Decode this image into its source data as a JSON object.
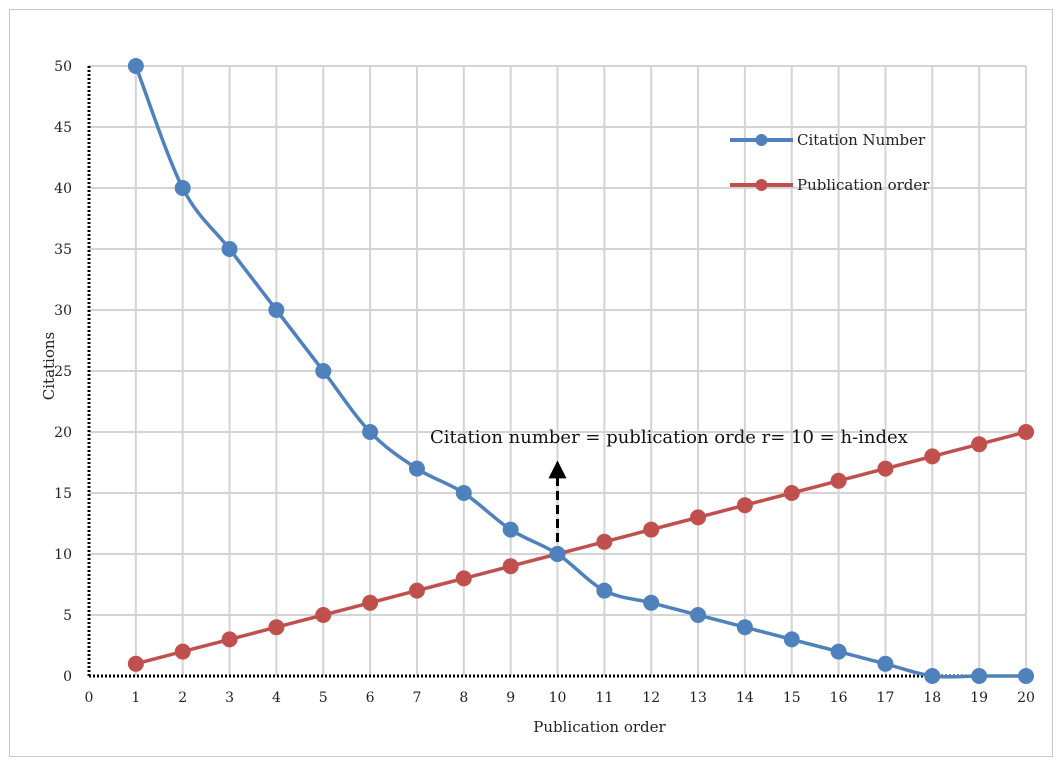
{
  "chart_data": {
    "type": "line",
    "title": "",
    "xlabel": "Publication order",
    "ylabel": "Citations",
    "xlim": [
      0,
      20
    ],
    "ylim": [
      0,
      50
    ],
    "x_ticks": [
      0,
      1,
      2,
      3,
      4,
      5,
      6,
      7,
      8,
      9,
      10,
      11,
      12,
      13,
      14,
      15,
      16,
      17,
      18,
      19,
      20
    ],
    "y_ticks": [
      0,
      5,
      10,
      15,
      20,
      25,
      30,
      35,
      40,
      45,
      50
    ],
    "grid": true,
    "legend_position": "top-right",
    "x": [
      1,
      2,
      3,
      4,
      5,
      6,
      7,
      8,
      9,
      10,
      11,
      12,
      13,
      14,
      15,
      16,
      17,
      18,
      19,
      20
    ],
    "series": [
      {
        "name": "Citation Number",
        "color": "#4f81bd",
        "values": [
          50,
          40,
          35,
          30,
          25,
          20,
          17,
          15,
          12,
          10,
          7,
          6,
          5,
          4,
          3,
          2,
          1,
          0,
          0,
          0
        ]
      },
      {
        "name": "Publication order",
        "color": "#c0504d",
        "values": [
          1,
          2,
          3,
          4,
          5,
          6,
          7,
          8,
          9,
          10,
          11,
          12,
          13,
          14,
          15,
          16,
          17,
          18,
          19,
          20
        ]
      }
    ],
    "annotation": {
      "text": "Citation number = publication orde r= 10 = h-index",
      "arrow_from": [
        10,
        10
      ],
      "arrow_to": [
        10,
        18
      ]
    }
  }
}
